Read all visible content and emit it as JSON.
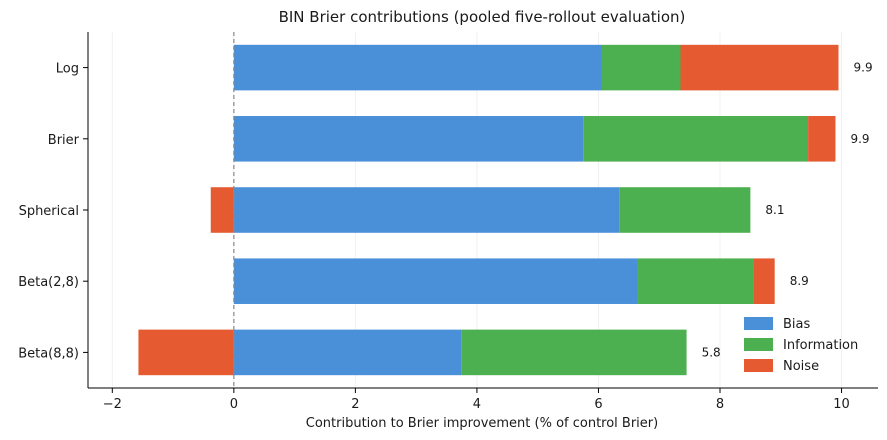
{
  "chart_data": {
    "type": "bar",
    "orientation": "horizontal",
    "stacked": true,
    "title": "BIN Brier contributions (pooled five-rollout evaluation)",
    "xlabel": "Contribution to Brier improvement (% of control Brier)",
    "ylabel": "",
    "xlim": [
      -2.4,
      10.6
    ],
    "xticks": [
      -2,
      0,
      2,
      4,
      6,
      8,
      10
    ],
    "grid": true,
    "reference_line_x": 0,
    "categories": [
      "Log",
      "Brier",
      "Spherical",
      "Beta(2,8)",
      "Beta(8,8)"
    ],
    "series": [
      {
        "name": "Bias",
        "color": "#4a90d9",
        "values": [
          6.05,
          5.75,
          6.35,
          6.65,
          3.75
        ]
      },
      {
        "name": "Information",
        "color": "#4caf50",
        "values": [
          1.3,
          3.7,
          2.15,
          1.9,
          3.7
        ]
      },
      {
        "name": "Noise",
        "color": "#e55a30",
        "values": [
          2.6,
          0.45,
          -0.38,
          0.35,
          -1.57
        ]
      }
    ],
    "totals": [
      "9.9",
      "9.9",
      "8.1",
      "8.9",
      "5.8"
    ],
    "legend_position": "lower-right"
  }
}
